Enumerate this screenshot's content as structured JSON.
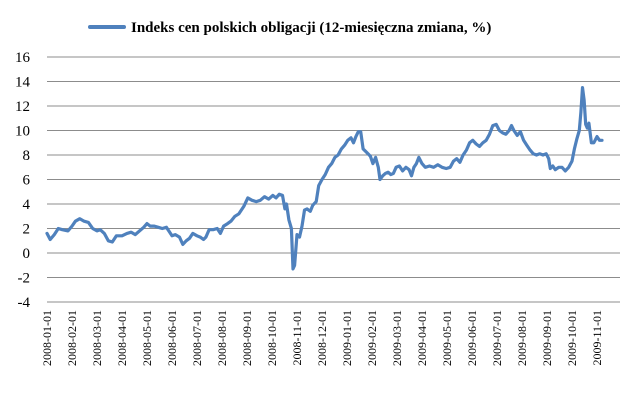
{
  "chart_data": {
    "type": "line",
    "title": "",
    "xlabel": "",
    "ylabel": "",
    "ylim": [
      -4,
      16
    ],
    "y_ticks": [
      "-4",
      "-2",
      "0",
      "2",
      "4",
      "6",
      "8",
      "10",
      "12",
      "14",
      "16"
    ],
    "x_ticks": [
      "2008-01-01",
      "2008-02-01",
      "2008-03-01",
      "2008-04-01",
      "2008-05-01",
      "2008-06-01",
      "2008-07-01",
      "2008-08-01",
      "2008-09-01",
      "2008-10-01",
      "2008-11-01",
      "2008-12-01",
      "2009-01-01",
      "2009-02-01",
      "2009-03-01",
      "2009-04-01",
      "2009-05-01",
      "2009-06-01",
      "2009-07-01",
      "2009-08-01",
      "2009-09-01",
      "2009-10-01",
      "2009-11-01"
    ],
    "grid": "horizontal",
    "legend_position": "top",
    "series": [
      {
        "name": "Indeks cen polskich obligacji (12-miesięczna zmiana, %)",
        "color": "#4f81bd",
        "points": [
          [
            "2008-01-01",
            1.6
          ],
          [
            "2008-01-05",
            1.1
          ],
          [
            "2008-01-10",
            1.5
          ],
          [
            "2008-01-15",
            2.0
          ],
          [
            "2008-01-20",
            1.9
          ],
          [
            "2008-01-27",
            1.8
          ],
          [
            "2008-02-01",
            2.2
          ],
          [
            "2008-02-05",
            2.6
          ],
          [
            "2008-02-10",
            2.8
          ],
          [
            "2008-02-15",
            2.6
          ],
          [
            "2008-02-20",
            2.5
          ],
          [
            "2008-02-25",
            2.0
          ],
          [
            "2008-03-01",
            1.8
          ],
          [
            "2008-03-05",
            1.9
          ],
          [
            "2008-03-10",
            1.6
          ],
          [
            "2008-03-15",
            1.0
          ],
          [
            "2008-03-20",
            0.9
          ],
          [
            "2008-03-25",
            1.4
          ],
          [
            "2008-04-01",
            1.4
          ],
          [
            "2008-04-07",
            1.6
          ],
          [
            "2008-04-12",
            1.7
          ],
          [
            "2008-04-17",
            1.5
          ],
          [
            "2008-04-22",
            1.8
          ],
          [
            "2008-04-27",
            2.1
          ],
          [
            "2008-05-01",
            2.4
          ],
          [
            "2008-05-05",
            2.2
          ],
          [
            "2008-05-10",
            2.2
          ],
          [
            "2008-05-15",
            2.1
          ],
          [
            "2008-05-20",
            2.0
          ],
          [
            "2008-05-25",
            2.1
          ],
          [
            "2008-05-28",
            1.8
          ],
          [
            "2008-06-01",
            1.4
          ],
          [
            "2008-06-05",
            1.5
          ],
          [
            "2008-06-10",
            1.3
          ],
          [
            "2008-06-14",
            0.7
          ],
          [
            "2008-06-18",
            1.0
          ],
          [
            "2008-06-22",
            1.2
          ],
          [
            "2008-06-26",
            1.6
          ],
          [
            "2008-07-01",
            1.4
          ],
          [
            "2008-07-05",
            1.3
          ],
          [
            "2008-07-09",
            1.1
          ],
          [
            "2008-07-12",
            1.3
          ],
          [
            "2008-07-16",
            1.9
          ],
          [
            "2008-07-21",
            1.9
          ],
          [
            "2008-07-26",
            2.0
          ],
          [
            "2008-07-30",
            1.6
          ],
          [
            "2008-08-03",
            2.2
          ],
          [
            "2008-08-08",
            2.4
          ],
          [
            "2008-08-12",
            2.6
          ],
          [
            "2008-08-17",
            3.0
          ],
          [
            "2008-08-22",
            3.2
          ],
          [
            "2008-08-28",
            3.8
          ],
          [
            "2008-09-02",
            4.5
          ],
          [
            "2008-09-07",
            4.3
          ],
          [
            "2008-09-12",
            4.2
          ],
          [
            "2008-09-17",
            4.3
          ],
          [
            "2008-09-22",
            4.6
          ],
          [
            "2008-09-27",
            4.4
          ],
          [
            "2008-10-02",
            4.7
          ],
          [
            "2008-10-06",
            4.5
          ],
          [
            "2008-10-10",
            4.8
          ],
          [
            "2008-10-14",
            4.7
          ],
          [
            "2008-10-17",
            3.6
          ],
          [
            "2008-10-19",
            4.0
          ],
          [
            "2008-10-22",
            2.7
          ],
          [
            "2008-10-25",
            2.0
          ],
          [
            "2008-10-27",
            -1.3
          ],
          [
            "2008-10-29",
            -1.0
          ],
          [
            "2008-11-01",
            1.5
          ],
          [
            "2008-11-04",
            1.3
          ],
          [
            "2008-11-07",
            2.2
          ],
          [
            "2008-11-10",
            3.5
          ],
          [
            "2008-11-13",
            3.6
          ],
          [
            "2008-11-17",
            3.4
          ],
          [
            "2008-11-20",
            3.9
          ],
          [
            "2008-11-24",
            4.2
          ],
          [
            "2008-11-27",
            5.5
          ],
          [
            "2008-12-01",
            6.0
          ],
          [
            "2008-12-05",
            6.4
          ],
          [
            "2008-12-09",
            7.0
          ],
          [
            "2008-12-13",
            7.3
          ],
          [
            "2008-12-17",
            7.8
          ],
          [
            "2008-12-21",
            8.0
          ],
          [
            "2008-12-25",
            8.5
          ],
          [
            "2008-12-29",
            8.8
          ],
          [
            "2009-01-02",
            9.2
          ],
          [
            "2009-01-06",
            9.4
          ],
          [
            "2009-01-09",
            9.0
          ],
          [
            "2009-01-12",
            9.5
          ],
          [
            "2009-01-15",
            9.9
          ],
          [
            "2009-01-18",
            9.9
          ],
          [
            "2009-01-21",
            8.5
          ],
          [
            "2009-01-24",
            8.3
          ],
          [
            "2009-01-27",
            8.1
          ],
          [
            "2009-01-30",
            7.9
          ],
          [
            "2009-02-02",
            7.3
          ],
          [
            "2009-02-05",
            7.8
          ],
          [
            "2009-02-08",
            7.0
          ],
          [
            "2009-02-10",
            6.0
          ],
          [
            "2009-02-13",
            6.3
          ],
          [
            "2009-02-16",
            6.5
          ],
          [
            "2009-02-19",
            6.6
          ],
          [
            "2009-02-22",
            6.4
          ],
          [
            "2009-02-25",
            6.5
          ],
          [
            "2009-02-28",
            7.0
          ],
          [
            "2009-03-04",
            7.1
          ],
          [
            "2009-03-08",
            6.7
          ],
          [
            "2009-03-12",
            7.0
          ],
          [
            "2009-03-16",
            6.8
          ],
          [
            "2009-03-19",
            6.3
          ],
          [
            "2009-03-22",
            7.0
          ],
          [
            "2009-03-25",
            7.3
          ],
          [
            "2009-03-28",
            7.8
          ],
          [
            "2009-04-01",
            7.3
          ],
          [
            "2009-04-05",
            7.0
          ],
          [
            "2009-04-10",
            7.1
          ],
          [
            "2009-04-15",
            7.0
          ],
          [
            "2009-04-20",
            7.2
          ],
          [
            "2009-04-25",
            7.0
          ],
          [
            "2009-04-30",
            6.9
          ],
          [
            "2009-05-05",
            7.0
          ],
          [
            "2009-05-09",
            7.5
          ],
          [
            "2009-05-13",
            7.7
          ],
          [
            "2009-05-17",
            7.4
          ],
          [
            "2009-05-21",
            8.0
          ],
          [
            "2009-05-25",
            8.4
          ],
          [
            "2009-05-29",
            9.0
          ],
          [
            "2009-06-02",
            9.2
          ],
          [
            "2009-06-06",
            8.9
          ],
          [
            "2009-06-10",
            8.7
          ],
          [
            "2009-06-14",
            9.0
          ],
          [
            "2009-06-18",
            9.2
          ],
          [
            "2009-06-22",
            9.7
          ],
          [
            "2009-06-26",
            10.4
          ],
          [
            "2009-06-30",
            10.5
          ],
          [
            "2009-07-04",
            10.0
          ],
          [
            "2009-07-08",
            9.8
          ],
          [
            "2009-07-12",
            9.7
          ],
          [
            "2009-07-16",
            10.0
          ],
          [
            "2009-07-19",
            10.4
          ],
          [
            "2009-07-22",
            10.0
          ],
          [
            "2009-07-26",
            9.6
          ],
          [
            "2009-07-30",
            9.9
          ],
          [
            "2009-08-03",
            9.2
          ],
          [
            "2009-08-07",
            8.8
          ],
          [
            "2009-08-11",
            8.4
          ],
          [
            "2009-08-15",
            8.1
          ],
          [
            "2009-08-19",
            8.0
          ],
          [
            "2009-08-23",
            8.1
          ],
          [
            "2009-08-27",
            8.0
          ],
          [
            "2009-08-31",
            8.1
          ],
          [
            "2009-09-03",
            7.7
          ],
          [
            "2009-09-05",
            6.9
          ],
          [
            "2009-09-08",
            7.1
          ],
          [
            "2009-09-11",
            6.8
          ],
          [
            "2009-09-15",
            7.0
          ],
          [
            "2009-09-19",
            7.0
          ],
          [
            "2009-09-23",
            6.7
          ],
          [
            "2009-09-27",
            7.0
          ],
          [
            "2009-10-01",
            7.5
          ],
          [
            "2009-10-04",
            8.5
          ],
          [
            "2009-10-07",
            9.3
          ],
          [
            "2009-10-10",
            10.0
          ],
          [
            "2009-10-12",
            11.5
          ],
          [
            "2009-10-14",
            13.5
          ],
          [
            "2009-10-16",
            12.5
          ],
          [
            "2009-10-18",
            10.5
          ],
          [
            "2009-10-20",
            10.2
          ],
          [
            "2009-10-22",
            10.6
          ],
          [
            "2009-10-25",
            9.0
          ],
          [
            "2009-10-28",
            9.0
          ],
          [
            "2009-11-01",
            9.5
          ],
          [
            "2009-11-04",
            9.2
          ],
          [
            "2009-11-07",
            9.2
          ]
        ]
      }
    ]
  }
}
